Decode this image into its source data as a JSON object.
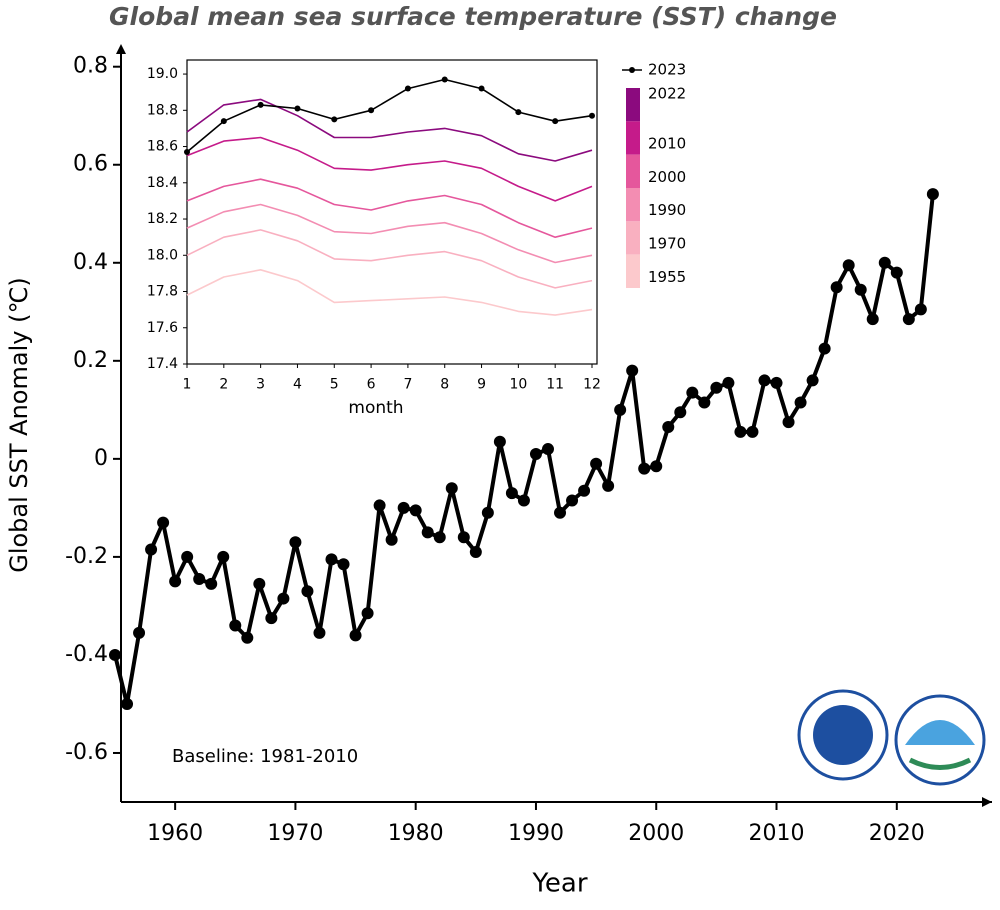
{
  "chart_data": [
    {
      "type": "line",
      "title": "Global mean sea surface temperature (SST) change",
      "x_label": "Year",
      "y_label": "Global SST Anomaly (℃)",
      "annotation": "Baseline: 1981-2010",
      "x": [
        1955,
        1956,
        1957,
        1958,
        1959,
        1960,
        1961,
        1962,
        1963,
        1964,
        1965,
        1966,
        1967,
        1968,
        1969,
        1970,
        1971,
        1972,
        1973,
        1974,
        1975,
        1976,
        1977,
        1978,
        1979,
        1980,
        1981,
        1982,
        1983,
        1984,
        1985,
        1986,
        1987,
        1988,
        1989,
        1990,
        1991,
        1992,
        1993,
        1994,
        1995,
        1996,
        1997,
        1998,
        1999,
        2000,
        2001,
        2002,
        2003,
        2004,
        2005,
        2006,
        2007,
        2008,
        2009,
        2010,
        2011,
        2012,
        2013,
        2014,
        2015,
        2016,
        2017,
        2018,
        2019,
        2020,
        2021,
        2022,
        2023
      ],
      "series": [
        {
          "color": "#000000",
          "values": [
            -0.4,
            -0.5,
            -0.355,
            -0.185,
            -0.13,
            -0.25,
            -0.2,
            -0.245,
            -0.255,
            -0.2,
            -0.34,
            -0.365,
            -0.255,
            -0.325,
            -0.285,
            -0.17,
            -0.27,
            -0.355,
            -0.205,
            -0.215,
            -0.36,
            -0.315,
            -0.095,
            -0.165,
            -0.1,
            -0.105,
            -0.15,
            -0.16,
            -0.06,
            -0.16,
            -0.19,
            -0.11,
            0.035,
            -0.07,
            -0.085,
            0.01,
            0.02,
            -0.11,
            -0.085,
            -0.065,
            -0.01,
            -0.055,
            0.1,
            0.18,
            -0.02,
            -0.015,
            0.065,
            0.095,
            0.135,
            0.115,
            0.145,
            0.155,
            0.055,
            0.055,
            0.16,
            0.155,
            0.075,
            0.115,
            0.16,
            0.225,
            0.35,
            0.395,
            0.345,
            0.285,
            0.4,
            0.38,
            0.285,
            0.305,
            0.54
          ]
        }
      ],
      "xlim": [
        1955,
        2027.5
      ],
      "xticks": [
        1960,
        1970,
        1980,
        1990,
        2000,
        2010,
        2020
      ],
      "ylim": [
        -0.7,
        0.83
      ],
      "yticks": [
        -0.6,
        -0.4,
        -0.2,
        0,
        0.2,
        0.4,
        0.6,
        0.8
      ],
      "markers": true
    },
    {
      "type": "line",
      "x_label": "month",
      "x": [
        1,
        2,
        3,
        4,
        5,
        6,
        7,
        8,
        9,
        10,
        11,
        12
      ],
      "series": [
        {
          "name": "1955",
          "color": "#fcc9cc",
          "values": [
            17.78,
            17.88,
            17.92,
            17.86,
            17.74,
            17.75,
            17.76,
            17.77,
            17.74,
            17.69,
            17.67,
            17.7
          ]
        },
        {
          "name": "1970",
          "color": "#f9b0c0",
          "values": [
            18.0,
            18.1,
            18.14,
            18.08,
            17.98,
            17.97,
            18.0,
            18.02,
            17.97,
            17.88,
            17.82,
            17.86
          ]
        },
        {
          "name": "1990",
          "color": "#f38db2",
          "values": [
            18.15,
            18.24,
            18.28,
            18.22,
            18.13,
            18.12,
            18.16,
            18.18,
            18.12,
            18.03,
            17.96,
            18.0
          ]
        },
        {
          "name": "2000",
          "color": "#e5579c",
          "values": [
            18.3,
            18.38,
            18.42,
            18.37,
            18.28,
            18.25,
            18.3,
            18.33,
            18.28,
            18.18,
            18.1,
            18.15
          ]
        },
        {
          "name": "2010",
          "color": "#c51b8a",
          "values": [
            18.55,
            18.63,
            18.65,
            18.58,
            18.48,
            18.47,
            18.5,
            18.52,
            18.48,
            18.38,
            18.3,
            18.38
          ]
        },
        {
          "name": "2022",
          "color": "#8b0a7e",
          "values": [
            18.68,
            18.83,
            18.86,
            18.77,
            18.65,
            18.65,
            18.68,
            18.7,
            18.66,
            18.56,
            18.52,
            18.58
          ]
        },
        {
          "name": "2023",
          "color": "#000000",
          "markers": true,
          "values": [
            18.57,
            18.74,
            18.83,
            18.81,
            18.75,
            18.8,
            18.92,
            18.97,
            18.92,
            18.79,
            18.74,
            18.77
          ]
        }
      ],
      "xlim": [
        1,
        12
      ],
      "xticks": [
        1,
        2,
        3,
        4,
        5,
        6,
        7,
        8,
        9,
        10,
        11,
        12
      ],
      "ylim": [
        17.4,
        19.05
      ],
      "yticks": [
        17.4,
        17.6,
        17.8,
        {
          "value": 18.0,
          "label": "18.0"
        },
        18.2,
        18.4,
        18.6,
        18.8,
        {
          "value": 19.0,
          "label": "19.0"
        }
      ]
    }
  ]
}
